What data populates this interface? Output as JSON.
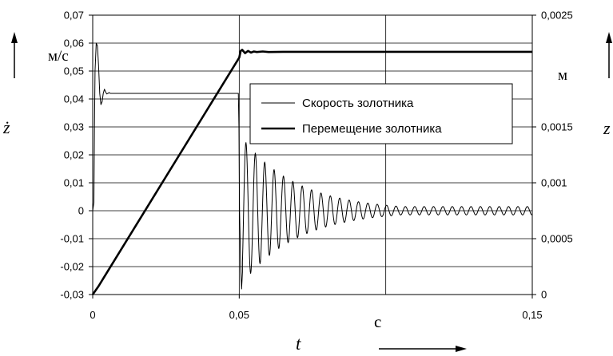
{
  "chart_data": {
    "type": "line",
    "x": {
      "min": 0,
      "max": 0.15,
      "ticks": [
        "0",
        "0,05",
        "0,15"
      ],
      "tick_values": [
        0,
        0.05,
        0.15
      ],
      "label": "t",
      "unit": "с"
    },
    "y_left": {
      "min": -0.03,
      "max": 0.07,
      "ticks": [
        "0,07",
        "0,06",
        "0,05",
        "0,04",
        "0,03",
        "0,02",
        "0,01",
        "0",
        "-0,01",
        "-0,02",
        "-0,03"
      ],
      "tick_values": [
        0.07,
        0.06,
        0.05,
        0.04,
        0.03,
        0.02,
        0.01,
        0,
        -0.01,
        -0.02,
        -0.03
      ],
      "label": "ż",
      "unit": "м/с"
    },
    "y_right": {
      "min": 0,
      "max": 0.0025,
      "ticks": [
        "0,0025",
        "0,0015",
        "0,001",
        "0,0005",
        "0"
      ],
      "tick_values": [
        0.0025,
        0.0015,
        0.001,
        0.0005,
        0
      ],
      "label": "z",
      "unit": "м"
    },
    "grid": {
      "x_lines": [
        0.05,
        0.1
      ],
      "y_lines_left": [
        0.06,
        0.05,
        0.04,
        0.03,
        0.02,
        0.01,
        0,
        -0.01,
        -0.02
      ]
    },
    "legend": {
      "placement": "center-right",
      "entries": [
        "Скорость золотника",
        "Перемещение золотника"
      ]
    },
    "series": [
      {
        "name": "Скорость золотника",
        "axis": "left",
        "stroke": "thin",
        "points": [
          [
            0,
            0
          ],
          [
            0.0004,
            0.003
          ],
          [
            0.0006,
            0.03
          ],
          [
            0.0008,
            0.05
          ],
          [
            0.0012,
            0.06
          ],
          [
            0.0016,
            0.059
          ],
          [
            0.002,
            0.052
          ],
          [
            0.0024,
            0.042
          ],
          [
            0.0028,
            0.038
          ],
          [
            0.0032,
            0.039
          ],
          [
            0.0036,
            0.042
          ],
          [
            0.004,
            0.0435
          ],
          [
            0.0044,
            0.0425
          ],
          [
            0.0048,
            0.0418
          ],
          [
            0.0052,
            0.042
          ],
          [
            0.0056,
            0.0423
          ],
          [
            0.006,
            0.042
          ],
          [
            0.008,
            0.042
          ],
          [
            0.02,
            0.042
          ],
          [
            0.04,
            0.042
          ],
          [
            0.0497,
            0.042
          ],
          [
            0.0499,
            0.03
          ],
          [
            0.0501,
            0.0
          ],
          [
            0.0505,
            -0.02
          ],
          [
            0.0508,
            -0.028
          ],
          [
            0.0511,
            -0.022
          ]
        ],
        "oscillation": {
          "start": 0.0511,
          "end": 0.15,
          "period": 0.0032,
          "amp0": 0.026,
          "decay": 0.019,
          "center": 0.0,
          "floor_amp": 0.0015
        }
      },
      {
        "name": "Перемещение золотника",
        "axis": "right",
        "stroke": "thick",
        "points": [
          [
            0,
            0
          ],
          [
            0.002,
            7.5e-05
          ],
          [
            0.05,
            0.00212
          ],
          [
            0.0505,
            0.00218
          ],
          [
            0.051,
            0.00219
          ],
          [
            0.052,
            0.00216
          ],
          [
            0.053,
            0.00218
          ],
          [
            0.054,
            0.002165
          ],
          [
            0.055,
            0.002175
          ],
          [
            0.056,
            0.00217
          ],
          [
            0.058,
            0.002175
          ],
          [
            0.06,
            0.00217
          ],
          [
            0.065,
            0.002172
          ],
          [
            0.15,
            0.002172
          ]
        ]
      }
    ]
  }
}
